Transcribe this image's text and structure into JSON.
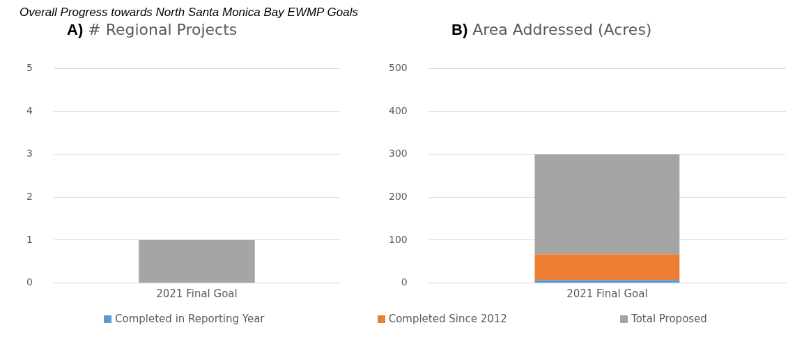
{
  "chart_data": [
    {
      "type": "bar",
      "title": "A) # Regional Projects",
      "annotations": [
        "Overall Progress towards North Santa Monica Bay EWMP Goals"
      ],
      "categories": [
        "2021 Final Goal"
      ],
      "series": [
        {
          "color": "#a5a5a5",
          "values": [
            1
          ]
        }
      ],
      "ylim": [
        0,
        5
      ],
      "yticks": [
        0,
        1,
        2,
        3,
        4,
        5
      ],
      "grid": "y"
    },
    {
      "type": "bar",
      "title": "B) Area Addressed (Acres)",
      "categories": [
        "2021 Final Goal"
      ],
      "stacked": true,
      "series": [
        {
          "name": "Completed in Reporting Year",
          "color": "#5b9bd5",
          "values": [
            7
          ]
        },
        {
          "name": "Completed Since 2012",
          "color": "#ed7d31",
          "values": [
            60
          ]
        },
        {
          "name": "Total Proposed",
          "color": "#a5a5a5",
          "values": [
            233
          ]
        }
      ],
      "ylim": [
        0,
        500
      ],
      "yticks": [
        0,
        100,
        200,
        300,
        400,
        500
      ],
      "grid": "y",
      "legend": "bottom"
    }
  ]
}
